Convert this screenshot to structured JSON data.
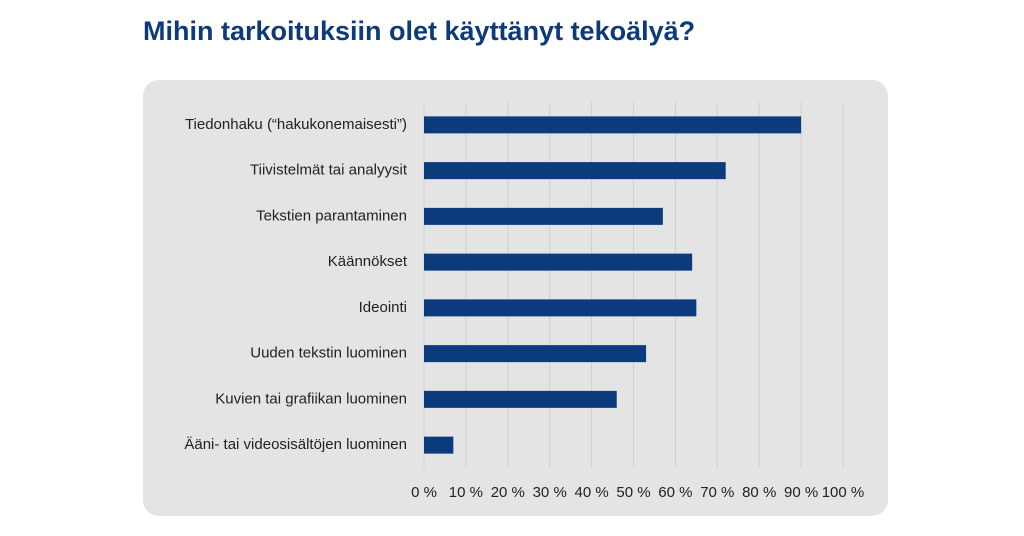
{
  "chart_data": {
    "type": "bar",
    "orientation": "horizontal",
    "title": "Mihin tarkoituksiin olet käyttänyt tekoälyä?",
    "categories": [
      "Tiedonhaku (“hakukonemaisesti”)",
      "Tiivistelmät tai analyysit",
      "Tekstien parantaminen",
      "Käännökset",
      "Ideointi",
      "Uuden tekstin luominen",
      "Kuvien tai grafiikan luominen",
      "Ääni- tai videosisältöjen luominen"
    ],
    "values": [
      90,
      72,
      57,
      64,
      65,
      53,
      46,
      7
    ],
    "color": "#0b3a7d",
    "xlim": [
      0,
      100
    ],
    "xticks": [
      {
        "value": 0,
        "label": "0 %"
      },
      {
        "value": 10,
        "label": "10 %"
      },
      {
        "value": 20,
        "label": "20 %"
      },
      {
        "value": 30,
        "label": "30 %"
      },
      {
        "value": 40,
        "label": "40 %"
      },
      {
        "value": 50,
        "label": "50 %"
      },
      {
        "value": 60,
        "label": "60 %"
      },
      {
        "value": 70,
        "label": "70 %"
      },
      {
        "value": 80,
        "label": "80 %"
      },
      {
        "value": 90,
        "label": "90 %"
      },
      {
        "value": 100,
        "label": "100 %"
      }
    ],
    "grid": true
  }
}
